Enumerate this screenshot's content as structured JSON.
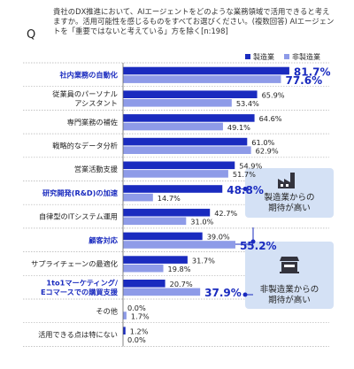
{
  "question": {
    "mark": "Q",
    "text": "貴社のDX推進において、AIエージェントをどのような業務領域で活用できると考えますか。活用可能性を感じるものをすべてお選びください。(複数回答) AIエージェントを「重要ではないと考えている」方を除く[n:198]"
  },
  "chart_data": {
    "type": "bar",
    "orientation": "horizontal",
    "unit": "%",
    "legend_position": "top-right",
    "series": [
      {
        "name": "製造業",
        "color": "#1a2bbf",
        "values": [
          81.7,
          65.9,
          64.6,
          61.0,
          54.9,
          48.8,
          42.7,
          39.0,
          31.7,
          20.7,
          0.0,
          1.2
        ]
      },
      {
        "name": "非製造業",
        "color": "#8e9be8",
        "values": [
          77.6,
          53.4,
          49.1,
          62.9,
          51.7,
          14.7,
          31.0,
          55.2,
          19.8,
          37.9,
          1.7,
          0.0
        ]
      }
    ],
    "categories": [
      {
        "label": [
          "社内業務の自動化"
        ],
        "highlight": true
      },
      {
        "label": [
          "従業員のパーソナル",
          "アシスタント"
        ],
        "highlight": false
      },
      {
        "label": [
          "専門業務の補佐"
        ],
        "highlight": false
      },
      {
        "label": [
          "戦略的なデータ分析"
        ],
        "highlight": false
      },
      {
        "label": [
          "営業活動支援"
        ],
        "highlight": false
      },
      {
        "label": [
          "研究開発(R&D)の加速"
        ],
        "highlight": true
      },
      {
        "label": [
          "自律型のITシステム運用"
        ],
        "highlight": false
      },
      {
        "label": [
          "顧客対応"
        ],
        "highlight": true
      },
      {
        "label": [
          "サプライチェーンの最適化"
        ],
        "highlight": false
      },
      {
        "label": [
          "1to1マーケティング/",
          "Eコマースでの購買支援"
        ],
        "highlight": true
      },
      {
        "label": [
          "その他"
        ],
        "highlight": false
      },
      {
        "label": [
          "活用できる点は特にない"
        ],
        "highlight": false
      }
    ],
    "value_labels": {
      "manufacturing": [
        "81.7%",
        "65.9%",
        "64.6%",
        "61.0%",
        "54.9%",
        "48.8%",
        "42.7%",
        "39.0%",
        "31.7%",
        "20.7%",
        "0.0%",
        "1.2%"
      ],
      "non_manufacturing": [
        "77.6%",
        "53.4%",
        "49.1%",
        "62.9%",
        "51.7%",
        "14.7%",
        "31.0%",
        "55.2%",
        "19.8%",
        "37.9%",
        "1.7%",
        "0.0%"
      ]
    },
    "highlighted_values": {
      "manufacturing": [
        0,
        5
      ],
      "non_manufacturing": [
        0,
        7,
        9
      ]
    },
    "annotations": [
      {
        "text": [
          "製造業からの",
          "期待が高い"
        ],
        "icon": "factory-icon",
        "points_to": "manufacturing",
        "rows": [
          5
        ]
      },
      {
        "text": [
          "非製造業からの",
          "期待が高い"
        ],
        "icon": "store-icon",
        "points_to": "non_manufacturing",
        "rows": [
          7,
          9
        ]
      }
    ],
    "highlight_color": "#1a2bbf",
    "callout_bg": "#d4e1f5",
    "xlim": [
      0,
      100
    ]
  }
}
